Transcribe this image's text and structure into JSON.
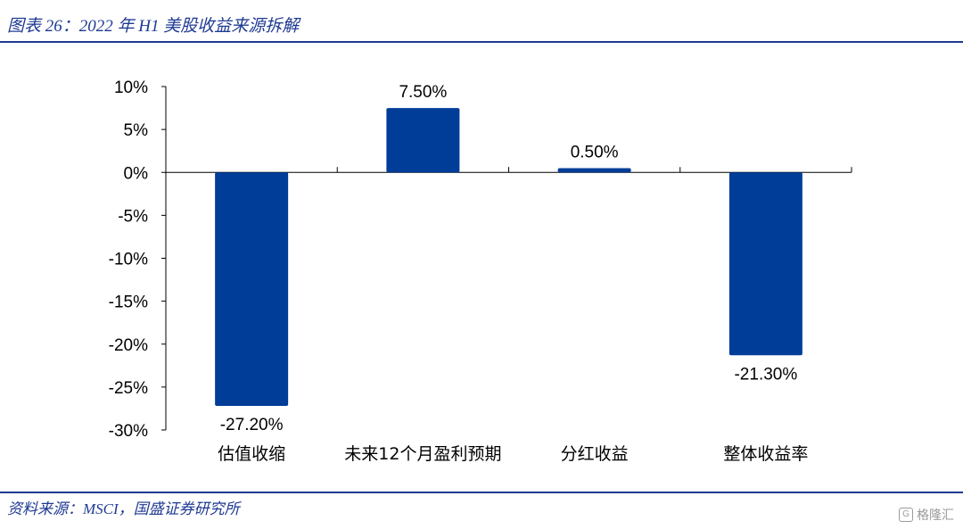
{
  "caption": "图表 26：2022 年 H1 美股收益来源拆解",
  "source": "资料来源：MSCI，国盛证券研究所",
  "watermark": {
    "icon": "gelonghui-logo-icon",
    "text": "格隆汇"
  },
  "colors": {
    "bar": "#003d99",
    "rule": "#1f3a93"
  },
  "chart_data": {
    "type": "bar",
    "title": "",
    "xlabel": "",
    "ylabel": "",
    "categories": [
      "估值收缩",
      "未来12个月盈利预期",
      "分红收益",
      "整体收益率"
    ],
    "values": [
      -27.2,
      7.5,
      0.5,
      -21.3
    ],
    "data_labels": [
      "-27.20%",
      "7.50%",
      "0.50%",
      "-21.30%"
    ],
    "ylim": [
      -30,
      10
    ],
    "yticks": [
      10,
      5,
      0,
      -5,
      -10,
      -15,
      -20,
      -25,
      -30
    ],
    "ytick_labels": [
      "10%",
      "5%",
      "0%",
      "-5%",
      "-10%",
      "-15%",
      "-20%",
      "-25%",
      "-30%"
    ],
    "grid": false,
    "legend": "none"
  }
}
